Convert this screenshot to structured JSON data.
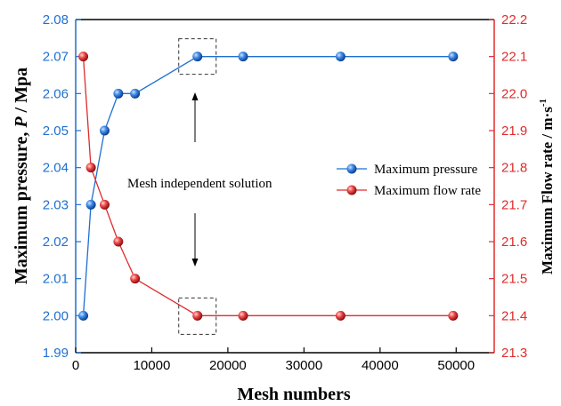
{
  "chart_data": {
    "type": "line",
    "xlabel": "Mesh numbers",
    "ylabel_left_prefix": "Maximum pressure, ",
    "ylabel_left_symbol": "P",
    "ylabel_left_suffix": " / Mpa",
    "ylabel_right_main": "Maximum Flow rate / m·s",
    "ylabel_right_sup": "-1",
    "xlim": [
      0,
      55000
    ],
    "xticks": [
      0,
      10000,
      20000,
      30000,
      40000,
      50000
    ],
    "ylim_left": [
      1.99,
      2.08
    ],
    "yticks_left": [
      "1.99",
      "2.00",
      "2.01",
      "2.02",
      "2.03",
      "2.04",
      "2.05",
      "2.06",
      "2.07",
      "2.08"
    ],
    "ylim_right": [
      21.3,
      22.2
    ],
    "yticks_right": [
      "21.3",
      "21.4",
      "21.5",
      "21.6",
      "21.7",
      "21.8",
      "21.9",
      "22.0",
      "22.1",
      "22.2"
    ],
    "annotation": "Mesh independent solution",
    "legend_position": "right",
    "series": [
      {
        "name": "Maximum pressure",
        "axis": "left",
        "color": "#1f6fd1",
        "x": [
          1000,
          2000,
          3800,
          5600,
          7800,
          16000,
          22000,
          34800,
          49600
        ],
        "y": [
          2.0,
          2.03,
          2.05,
          2.06,
          2.06,
          2.07,
          2.07,
          2.07,
          2.07
        ]
      },
      {
        "name": "Maximum flow rate",
        "axis": "right",
        "color": "#e02b2b",
        "x": [
          1000,
          2000,
          3800,
          5600,
          7800,
          16000,
          22000,
          34800,
          49600
        ],
        "y": [
          22.1,
          21.8,
          21.7,
          21.6,
          21.5,
          21.4,
          21.4,
          21.4,
          21.4
        ]
      }
    ]
  }
}
